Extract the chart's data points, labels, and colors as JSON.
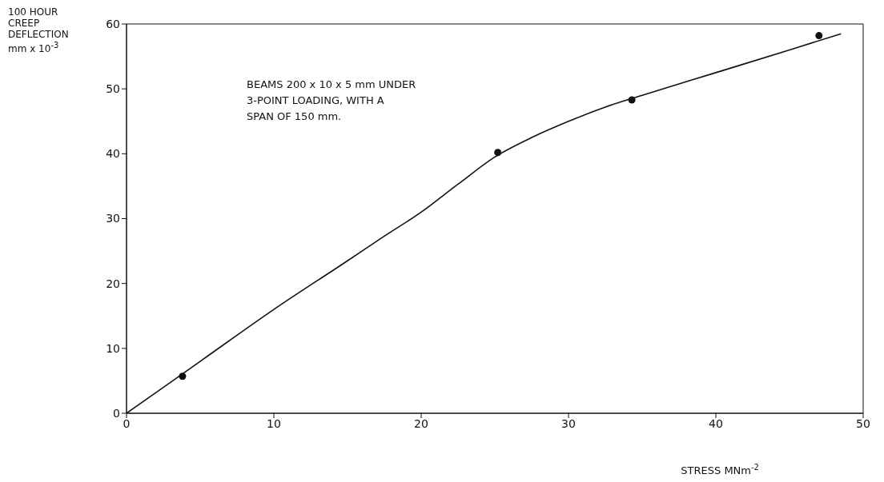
{
  "chart_data": {
    "type": "scatter",
    "xlabel": "STRESS MNm$^{-2}$",
    "ylabel": "100 HOUR CREEP DEFLECTION mm x 10$^{-3}$",
    "annotations": [
      "BEAMS 200 x 10 x 5 mm UNDER",
      "3-POINT LOADING, WITH A",
      "SPAN OF 150 mm."
    ],
    "series": [
      {
        "color": "#111111",
        "x": [
          3.8,
          25.2,
          34.3,
          47
        ],
        "values": [
          5.7,
          40.2,
          48.3,
          58.2
        ],
        "marker": "circle"
      },
      {
        "type": "line",
        "color": "#111111",
        "x": [
          0,
          5,
          10,
          15,
          17.5,
          20,
          22.5,
          25,
          27.5,
          30,
          32.5,
          35,
          40,
          45,
          48.5
        ],
        "values": [
          0,
          8,
          16,
          23.5,
          27.3,
          31,
          35.3,
          39.5,
          42.5,
          45,
          47.2,
          49,
          52.5,
          56,
          58.5
        ],
        "marker": "none",
        "line_style": "solid"
      }
    ],
    "xlim": [
      0,
      50
    ],
    "xticks": [
      0,
      10,
      20,
      30,
      40,
      50
    ],
    "ylim": [
      0,
      60
    ],
    "yticks": [
      0,
      10,
      20,
      30,
      40,
      50,
      60
    ],
    "grid": false,
    "legend": false
  }
}
